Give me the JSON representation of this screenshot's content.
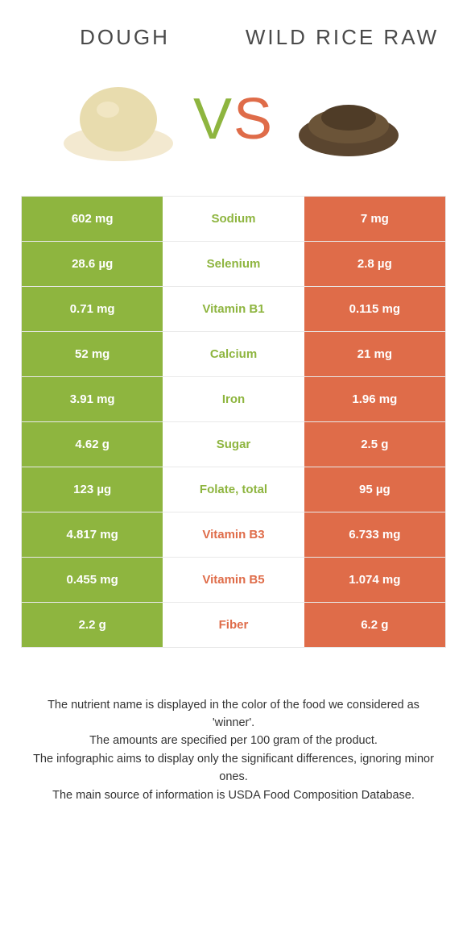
{
  "colors": {
    "left": "#8eb53f",
    "right": "#df6c49",
    "text": "#4a4a4a",
    "border": "#e9e9e9",
    "background": "#ffffff"
  },
  "header": {
    "left_title": "Dough",
    "right_title": "Wild Rice Raw",
    "vs_v": "V",
    "vs_s": "S"
  },
  "rows": [
    {
      "left": "602 mg",
      "label": "Sodium",
      "right": "7 mg",
      "winner": "left"
    },
    {
      "left": "28.6 µg",
      "label": "Selenium",
      "right": "2.8 µg",
      "winner": "left"
    },
    {
      "left": "0.71 mg",
      "label": "Vitamin B1",
      "right": "0.115 mg",
      "winner": "left"
    },
    {
      "left": "52 mg",
      "label": "Calcium",
      "right": "21 mg",
      "winner": "left"
    },
    {
      "left": "3.91 mg",
      "label": "Iron",
      "right": "1.96 mg",
      "winner": "left"
    },
    {
      "left": "4.62 g",
      "label": "Sugar",
      "right": "2.5 g",
      "winner": "left"
    },
    {
      "left": "123 µg",
      "label": "Folate, total",
      "right": "95 µg",
      "winner": "left"
    },
    {
      "left": "4.817 mg",
      "label": "Vitamin B3",
      "right": "6.733 mg",
      "winner": "right"
    },
    {
      "left": "0.455 mg",
      "label": "Vitamin B5",
      "right": "1.074 mg",
      "winner": "right"
    },
    {
      "left": "2.2 g",
      "label": "Fiber",
      "right": "6.2 g",
      "winner": "right"
    }
  ],
  "footer": {
    "line1": "The nutrient name is displayed in the color of the food we considered as 'winner'.",
    "line2": "The amounts are specified per 100 gram of the product.",
    "line3": "The infographic aims to display only the significant differences, ignoring minor ones.",
    "line4": "The main source of information is USDA Food Composition Database."
  }
}
